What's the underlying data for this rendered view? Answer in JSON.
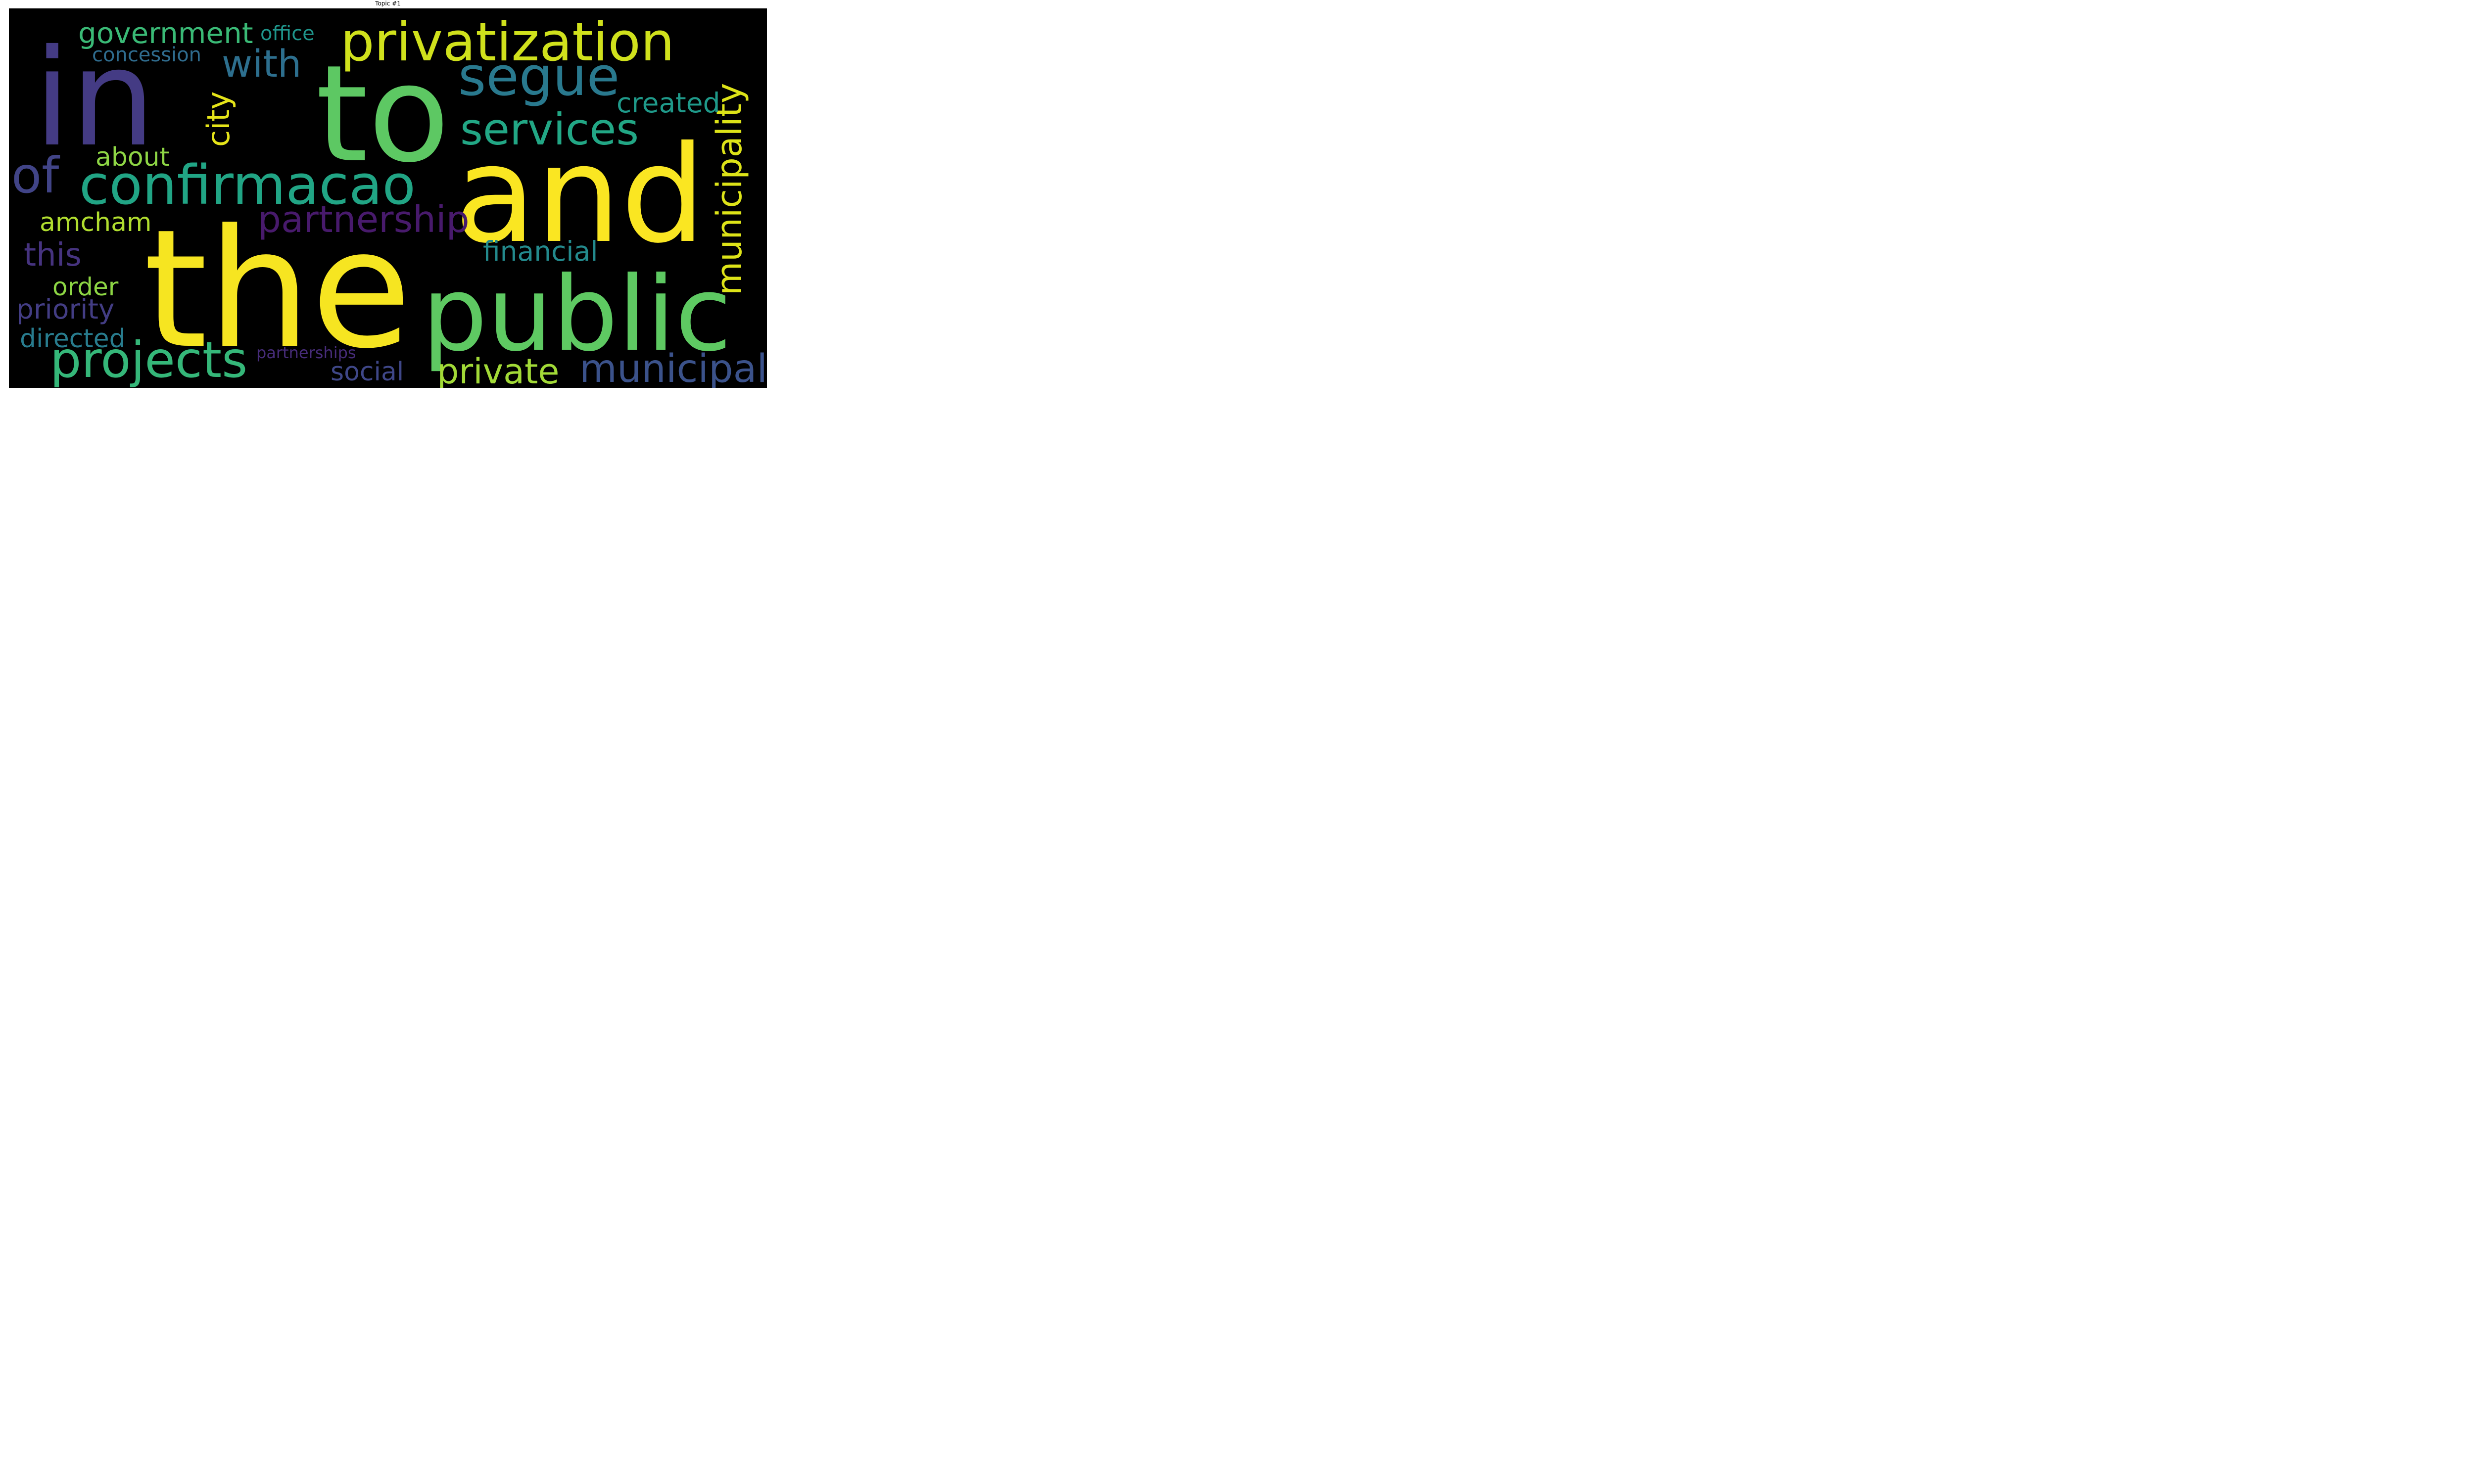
{
  "title": "Topic #1",
  "background_color": "#000000",
  "palette": "viridis",
  "words": [
    {
      "text": "the",
      "color": "#f6e521"
    },
    {
      "text": "and",
      "color": "#fae622"
    },
    {
      "text": "to",
      "color": "#5dc863"
    },
    {
      "text": "in",
      "color": "#443b84"
    },
    {
      "text": "public",
      "color": "#5ec962"
    },
    {
      "text": "privatization",
      "color": "#d0e11c"
    },
    {
      "text": "confirmacao",
      "color": "#21a585"
    },
    {
      "text": "segue",
      "color": "#29798e"
    },
    {
      "text": "projects",
      "color": "#35b779"
    },
    {
      "text": "services",
      "color": "#22a785"
    },
    {
      "text": "municipality",
      "color": "#dde318"
    },
    {
      "text": "municipal",
      "color": "#3b528b"
    },
    {
      "text": "private",
      "color": "#a2da37"
    },
    {
      "text": "partnership",
      "color": "#481a6c"
    },
    {
      "text": "of",
      "color": "#414487"
    },
    {
      "text": "with",
      "color": "#2d6f8e"
    },
    {
      "text": "government",
      "color": "#3aba76"
    },
    {
      "text": "city",
      "color": "#e5e419"
    },
    {
      "text": "financial",
      "color": "#238a8d"
    },
    {
      "text": "created",
      "color": "#1f9a8a"
    },
    {
      "text": "about",
      "color": "#8ed645"
    },
    {
      "text": "amcham",
      "color": "#b0dd2f"
    },
    {
      "text": "this",
      "color": "#46337f"
    },
    {
      "text": "order",
      "color": "#8dd644"
    },
    {
      "text": "priority",
      "color": "#433d84"
    },
    {
      "text": "directed",
      "color": "#287c8e"
    },
    {
      "text": "social",
      "color": "#3f4788"
    },
    {
      "text": "concession",
      "color": "#2f6c8e"
    },
    {
      "text": "office",
      "color": "#1f958b"
    },
    {
      "text": "partnerships",
      "color": "#472c7a"
    }
  ]
}
